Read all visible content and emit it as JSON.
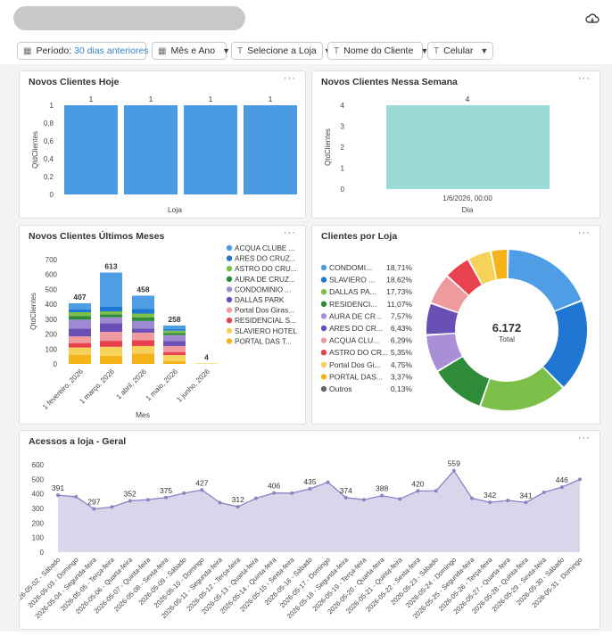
{
  "header": {
    "icon": "cloud-sync-icon"
  },
  "filters": [
    {
      "icon": "calendar-icon",
      "label": "Período:",
      "value": "30 dias anteriores",
      "has_clear": true
    },
    {
      "icon": "calendar-icon",
      "label": "Mês e Ano"
    },
    {
      "icon": "text-type-icon",
      "label": "Selecione a Loja"
    },
    {
      "icon": "text-type-icon",
      "label": "Nome do Cliente"
    },
    {
      "icon": "text-type-icon",
      "label": "Celular"
    }
  ],
  "panels": {
    "today": {
      "title": "Novos Clientes Hoje",
      "menu": "···"
    },
    "week": {
      "title": "Novos Clientes Nessa Semana",
      "menu": "···"
    },
    "months": {
      "title": "Novos Clientes Últimos Meses",
      "menu": "···"
    },
    "stores": {
      "title": "Clientes por Loja",
      "menu": "···"
    },
    "access": {
      "title": "Acessos a loja - Geral",
      "menu": "···"
    }
  },
  "chart_data": [
    {
      "id": "today",
      "type": "bar",
      "categories": [
        "",
        "",
        "",
        ""
      ],
      "values": [
        1,
        1,
        1,
        1
      ],
      "data_labels": [
        "1",
        "1",
        "1",
        "1"
      ],
      "xlabel": "Loja",
      "ylabel": "QtdClientes",
      "ylim": [
        0,
        1
      ],
      "yticks": [
        "0",
        "0,2",
        "0,4",
        "0,6",
        "0,8",
        "1"
      ],
      "color": "#4a9be2"
    },
    {
      "id": "week",
      "type": "bar",
      "categories": [
        "1/6/2026, 00:00"
      ],
      "values": [
        4
      ],
      "data_labels": [
        "4"
      ],
      "xlabel": "Dia",
      "ylabel": "QtdClientes",
      "ylim": [
        0,
        4
      ],
      "yticks": [
        "0",
        "1",
        "2",
        "3",
        "4"
      ],
      "color": "#9adbd8"
    },
    {
      "id": "months",
      "type": "bar",
      "stacked": true,
      "categories": [
        "1 fevereiro, 2026",
        "1 março, 2026",
        "1 abril, 2026",
        "1 maio, 2026",
        "1 junho, 2026"
      ],
      "totals": [
        407,
        613,
        458,
        258,
        4
      ],
      "data_labels": [
        "407",
        "613",
        "458",
        "258",
        "4"
      ],
      "xlabel": "Mes",
      "ylabel": "QtdClientes",
      "ylim": [
        0,
        700
      ],
      "yticks": [
        "0",
        "100",
        "200",
        "300",
        "400",
        "500",
        "600",
        "700"
      ],
      "legend_position": "right",
      "series": [
        {
          "name": "ACQUA CLUBE ...",
          "color": "#4f9de4",
          "values": [
            40,
            230,
            90,
            25,
            0
          ]
        },
        {
          "name": "ARES DO CRUZ...",
          "color": "#2077d3",
          "values": [
            20,
            30,
            30,
            10,
            0
          ]
        },
        {
          "name": "ASTRO DO CRU...",
          "color": "#7cc04a",
          "values": [
            25,
            20,
            25,
            15,
            0
          ]
        },
        {
          "name": "AURA DE CRUZ...",
          "color": "#2e8b3a",
          "values": [
            25,
            20,
            25,
            15,
            0
          ]
        },
        {
          "name": "CONDOMINIO ...",
          "color": "#9e8ad2",
          "values": [
            60,
            40,
            50,
            40,
            0
          ]
        },
        {
          "name": "DALLAS PARK",
          "color": "#6a4fb5",
          "values": [
            52,
            58,
            28,
            33,
            0
          ]
        },
        {
          "name": "Portal Dos Giras...",
          "color": "#ef9a9e",
          "values": [
            45,
            60,
            50,
            40,
            0
          ]
        },
        {
          "name": "RESIDENCIAL S...",
          "color": "#e8424e",
          "values": [
            30,
            40,
            40,
            20,
            0
          ]
        },
        {
          "name": "SLAVIERO HOTEL",
          "color": "#f6d25b",
          "values": [
            50,
            60,
            50,
            40,
            2
          ]
        },
        {
          "name": "PORTAL DAS T...",
          "color": "#f5b31a",
          "values": [
            60,
            55,
            70,
            20,
            2
          ]
        }
      ]
    },
    {
      "id": "stores",
      "type": "pie",
      "donut": true,
      "center_value": "6.172",
      "center_label": "Total",
      "legend_position": "left",
      "slices": [
        {
          "name": "CONDOMI...",
          "pct_label": "18,71%",
          "value": 18.71,
          "color": "#4f9de4"
        },
        {
          "name": "SLAVIERO ...",
          "pct_label": "18,62%",
          "value": 18.62,
          "color": "#2077d3"
        },
        {
          "name": "DALLAS PA...",
          "pct_label": "17,73%",
          "value": 17.73,
          "color": "#7cc04a"
        },
        {
          "name": "RESIDENCI...",
          "pct_label": "11,07%",
          "value": 11.07,
          "color": "#2e8b3a"
        },
        {
          "name": "AURA DE CR...",
          "pct_label": "7,57%",
          "value": 7.57,
          "color": "#a98fd6"
        },
        {
          "name": "ARES DO CR...",
          "pct_label": "6,43%",
          "value": 6.43,
          "color": "#6a4fb5"
        },
        {
          "name": "ACQUA CLU...",
          "pct_label": "6,29%",
          "value": 6.29,
          "color": "#ef9a9e"
        },
        {
          "name": "ASTRO DO CR...",
          "pct_label": "5,35%",
          "value": 5.35,
          "color": "#e8424e"
        },
        {
          "name": "Portal Dos Gi...",
          "pct_label": "4,75%",
          "value": 4.75,
          "color": "#f6d25b"
        },
        {
          "name": "PORTAL DAS...",
          "pct_label": "3,37%",
          "value": 3.37,
          "color": "#f5b31a"
        },
        {
          "name": "Outros",
          "pct_label": "0,13%",
          "value": 0.13,
          "color": "#666666"
        }
      ]
    },
    {
      "id": "access",
      "type": "area",
      "ylim": [
        0,
        600
      ],
      "yticks": [
        "0",
        "100",
        "200",
        "300",
        "400",
        "500",
        "600"
      ],
      "color": "#8a83c4",
      "fill": "#d9d6ec",
      "labeled_points": [
        0,
        2,
        4,
        6,
        8,
        10,
        12,
        14,
        16,
        18,
        20,
        22,
        24,
        26,
        28
      ],
      "x": [
        "2026-05-02 - Sábado",
        "2026-05-03 - Domingo",
        "2026-05-04 - Segunda-feira",
        "2026-05-05 - Terça-feira",
        "2026-05-06 - Quarta-feira",
        "2026-05-07 - Quinta-feira",
        "2026-05-08 - Sexta-feira",
        "2026-05-09 - Sábado",
        "2026-05-10 - Domingo",
        "2026-05-11 - Segunda-feira",
        "2026-05-12 - Terça-feira",
        "2026-05-13 - Quarta-feira",
        "2026-05-14 - Quinta-feira",
        "2026-05-15 - Sexta-feira",
        "2026-05-16 - Sábado",
        "2026-05-17 - Domingo",
        "2026-05-18 - Segunda-feira",
        "2026-05-19 - Terça-feira",
        "2026-05-20 - Quarta-feira",
        "2026-05-21 - Quinta-feira",
        "2026-05-22 - Sexta-feira",
        "2026-05-23 - Sábado",
        "2026-05-24 - Domingo",
        "2026-05-25 - Segunda-feira",
        "2026-05-26 - Terça-feira",
        "2026-05-27 - Quarta-feira",
        "2026-05-28 - Quinta-feira",
        "2026-05-29 - Sexta-feira",
        "2026-05-30 - Sábado",
        "2026-05-31 - Domingo"
      ],
      "values": [
        391,
        380,
        297,
        310,
        352,
        360,
        375,
        405,
        427,
        340,
        312,
        370,
        406,
        405,
        435,
        480,
        374,
        360,
        388,
        365,
        420,
        420,
        559,
        370,
        342,
        355,
        341,
        410,
        446,
        500
      ]
    }
  ]
}
